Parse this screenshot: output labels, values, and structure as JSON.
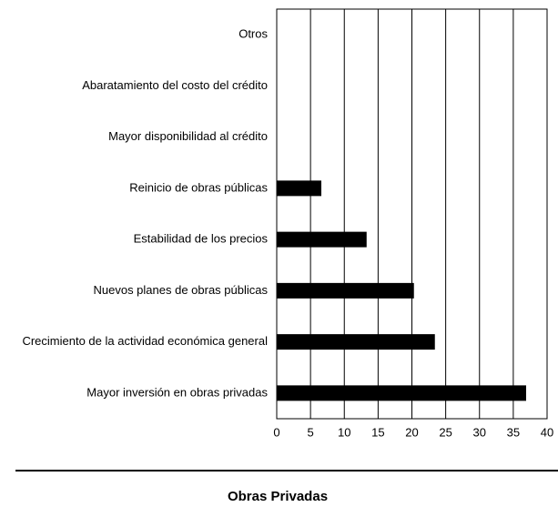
{
  "chart_data": {
    "type": "barh",
    "title": "Obras Privadas",
    "categories": [
      "Otros",
      "Abaratamiento del costo del crédito",
      "Mayor disponibilidad al crédito",
      "Reinicio de obras públicas",
      "Estabilidad de los precios",
      "Nuevos planes de obras públicas",
      "Crecimiento de la actividad económica general",
      "Mayor inversión en obras privadas"
    ],
    "values": [
      0,
      0,
      0,
      6.6,
      13.3,
      20.3,
      23.4,
      36.9
    ],
    "color": "#000000",
    "xlim": [
      0,
      40
    ],
    "xticks": [
      0,
      5,
      10,
      15,
      20,
      25,
      30,
      35,
      40
    ],
    "grid": true
  }
}
